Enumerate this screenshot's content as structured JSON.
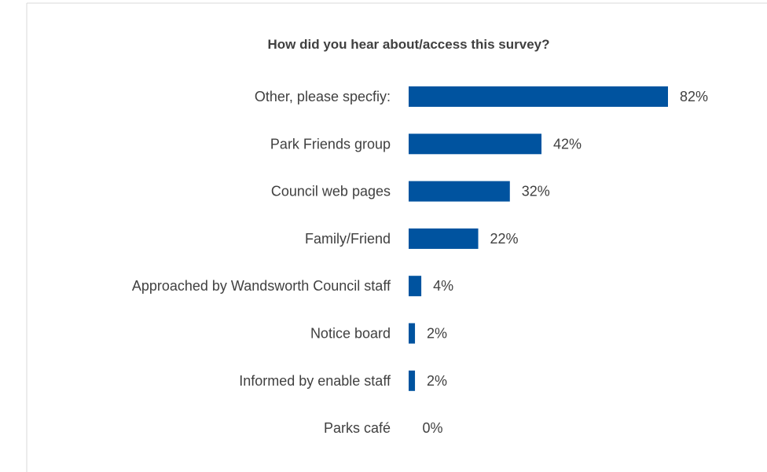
{
  "chart_data": {
    "type": "bar",
    "orientation": "horizontal",
    "title": "How did you hear about/access this survey?",
    "categories": [
      "Other, please specfiy:",
      "Park Friends group",
      "Council web pages",
      "Family/Friend",
      "Approached by Wandsworth Council staff",
      "Notice board",
      "Informed by enable staff",
      "Parks café"
    ],
    "values": [
      82,
      42,
      32,
      22,
      4,
      2,
      2,
      0
    ],
    "value_labels": [
      "82%",
      "42%",
      "32%",
      "22%",
      "4%",
      "2%",
      "2%",
      "0%"
    ],
    "unit": "%",
    "xlim": [
      0,
      100
    ],
    "bar_color": "#00539f",
    "text_color": "#404040",
    "grid": false,
    "legend": "none"
  }
}
